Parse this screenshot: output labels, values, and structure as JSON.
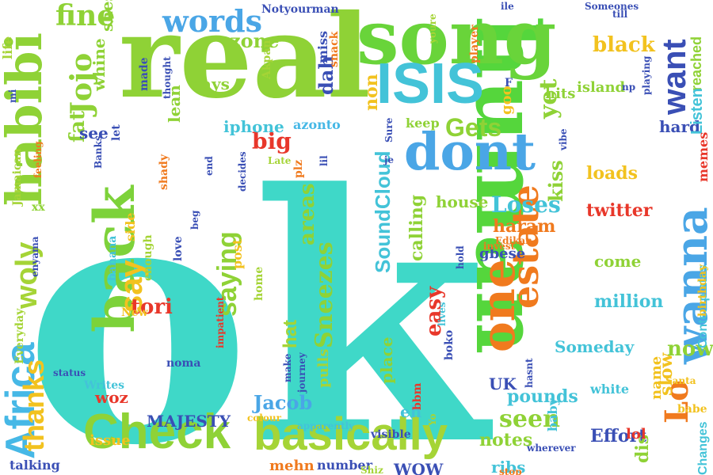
{
  "words": [
    {
      "text": "ok",
      "color": "#3fd8c8"
    },
    {
      "text": "real",
      "color": "#8fd236"
    },
    {
      "text": "human",
      "color": "#55d63c"
    },
    {
      "text": "song",
      "color": "#69d43a"
    },
    {
      "text": "habibi",
      "color": "#8fd236"
    },
    {
      "text": "back",
      "color": "#7dd23a"
    },
    {
      "text": "Check",
      "color": "#8fd236"
    },
    {
      "text": "basically",
      "color": "#a5d436"
    },
    {
      "text": "Africa",
      "color": "#46b8e6"
    },
    {
      "text": "ISIS",
      "color": "#43c3d8"
    },
    {
      "text": "dont",
      "color": "#4aa6e6"
    },
    {
      "text": "one",
      "color": "#f07a1e"
    },
    {
      "text": "estate",
      "color": "#f07a1e"
    },
    {
      "text": "Lo",
      "color": "#f07a1e"
    },
    {
      "text": "wanna",
      "color": "#4aa6e6"
    },
    {
      "text": "want",
      "color": "#3a4fb5"
    },
    {
      "text": "words",
      "color": "#4aa6e6"
    },
    {
      "text": "fine",
      "color": "#8fd236"
    },
    {
      "text": "Jojo",
      "color": "#8fd236"
    },
    {
      "text": "zone",
      "color": "#8fd236"
    },
    {
      "text": "black",
      "color": "#f2c21f"
    },
    {
      "text": "reached",
      "color": "#8fd236"
    },
    {
      "text": "Gets",
      "color": "#8fd236"
    },
    {
      "text": "yet",
      "color": "#8fd236"
    },
    {
      "text": "non",
      "color": "#f2c21f"
    },
    {
      "text": "dah",
      "color": "#3a4fb5"
    },
    {
      "text": "lean",
      "color": "#8fd236"
    },
    {
      "text": "days",
      "color": "#8fd236"
    },
    {
      "text": "big",
      "color": "#e8372a"
    },
    {
      "text": "iphone",
      "color": "#43c3d8"
    },
    {
      "text": "azonto",
      "color": "#46b8e6"
    },
    {
      "text": "say",
      "color": "#f2c21f"
    },
    {
      "text": "saying",
      "color": "#8fd236"
    },
    {
      "text": "tori",
      "color": "#e8372a"
    },
    {
      "text": "woly",
      "color": "#a5d436"
    },
    {
      "text": "thanks",
      "color": "#f2c21f"
    },
    {
      "text": "fat",
      "color": "#8fd236"
    },
    {
      "text": "see",
      "color": "#3a4fb5"
    },
    {
      "text": "whine",
      "color": "#8fd236"
    },
    {
      "text": "Sneezes",
      "color": "#8fd236"
    },
    {
      "text": "areas",
      "color": "#8fd236"
    },
    {
      "text": "SoundCloud",
      "color": "#43c3d8"
    },
    {
      "text": "house",
      "color": "#8fd236"
    },
    {
      "text": "Loses",
      "color": "#43c3d8"
    },
    {
      "text": "haram",
      "color": "#f07a1e"
    },
    {
      "text": "twitter",
      "color": "#e8372a"
    },
    {
      "text": "come",
      "color": "#8fd236"
    },
    {
      "text": "million",
      "color": "#43c3d8"
    },
    {
      "text": "Someday",
      "color": "#43c3d8"
    },
    {
      "text": "easy",
      "color": "#e8372a"
    },
    {
      "text": "Jacob",
      "color": "#4aa6e6"
    },
    {
      "text": "seen",
      "color": "#8fd236"
    },
    {
      "text": "notes",
      "color": "#8fd236"
    },
    {
      "text": "pounds",
      "color": "#43c3d8"
    },
    {
      "text": "MAJESTY",
      "color": "#3a4fb5"
    },
    {
      "text": "WOW",
      "color": "#3a4fb5"
    },
    {
      "text": "Effort",
      "color": "#3a4fb5"
    },
    {
      "text": "slow",
      "color": "#f2c21f"
    },
    {
      "text": "now",
      "color": "#8fd236"
    },
    {
      "text": "hard",
      "color": "#3a4fb5"
    },
    {
      "text": "Listen",
      "color": "#43c3d8"
    },
    {
      "text": "loads",
      "color": "#f2c21f"
    },
    {
      "text": "kiss",
      "color": "#8fd236"
    },
    {
      "text": "island",
      "color": "#8fd236"
    },
    {
      "text": "hits",
      "color": "#8fd236"
    },
    {
      "text": "keep",
      "color": "#8fd236"
    },
    {
      "text": "gbese",
      "color": "#3a4fb5"
    },
    {
      "text": "UK",
      "color": "#3a4fb5"
    },
    {
      "text": "place",
      "color": "#8fd236"
    },
    {
      "text": "eh",
      "color": "#43c3d8"
    },
    {
      "text": "hat",
      "color": "#a5d436"
    },
    {
      "text": "woz",
      "color": "#e8372a"
    },
    {
      "text": "issue",
      "color": "#f2c21f"
    },
    {
      "text": "mehn",
      "color": "#f07a1e"
    },
    {
      "text": "number",
      "color": "#3a4fb5"
    },
    {
      "text": "ribs",
      "color": "#43c3d8"
    },
    {
      "text": "talking",
      "color": "#3a4fb5"
    },
    {
      "text": "Changes",
      "color": "#43c3d8"
    },
    {
      "text": "dis",
      "color": "#8fd236"
    },
    {
      "text": "name",
      "color": "#f2c21f"
    },
    {
      "text": "white",
      "color": "#43c3d8"
    },
    {
      "text": "babe",
      "color": "#f2c21f"
    },
    {
      "text": "lol",
      "color": "#e8372a"
    },
    {
      "text": "baby",
      "color": "#43c3d8"
    },
    {
      "text": "Contemplates",
      "color": "#43c3d8"
    },
    {
      "text": "birthday",
      "color": "#f2c21f"
    },
    {
      "text": "memes",
      "color": "#e8372a"
    },
    {
      "text": "miss",
      "color": "#3a4fb5"
    },
    {
      "text": "snack",
      "color": "#f07a1e"
    },
    {
      "text": "shes",
      "color": "#8fd236"
    },
    {
      "text": "Notyourman",
      "color": "#3a4fb5"
    },
    {
      "text": "Akpan",
      "color": "#a5d436"
    },
    {
      "text": "made",
      "color": "#3a4fb5"
    },
    {
      "text": "thought",
      "color": "#3a4fb5"
    },
    {
      "text": "Someones",
      "color": "#3a4fb5"
    },
    {
      "text": "player",
      "color": "#f07a1e"
    },
    {
      "text": "youre",
      "color": "#a5d436"
    },
    {
      "text": "ile",
      "color": "#3a4fb5"
    },
    {
      "text": "till",
      "color": "#3a4fb5"
    },
    {
      "text": "playing",
      "color": "#3a4fb5"
    },
    {
      "text": "np",
      "color": "#3a4fb5"
    },
    {
      "text": "F",
      "color": "#3a4fb5"
    },
    {
      "text": "goo",
      "color": "#f2c21f"
    },
    {
      "text": "let",
      "color": "#3a4fb5"
    },
    {
      "text": "Banks",
      "color": "#3a4fb5"
    },
    {
      "text": "feeling",
      "color": "#f07a1e"
    },
    {
      "text": "Late",
      "color": "#a5d436"
    },
    {
      "text": "end",
      "color": "#3a4fb5"
    },
    {
      "text": "shady",
      "color": "#f07a1e"
    },
    {
      "text": "plz",
      "color": "#f07a1e"
    },
    {
      "text": "lil",
      "color": "#3a4fb5"
    },
    {
      "text": "Sure",
      "color": "#3a4fb5"
    },
    {
      "text": "je",
      "color": "#3a4fb5"
    },
    {
      "text": "vibe",
      "color": "#3a4fb5"
    },
    {
      "text": "Jamaican",
      "color": "#a5d436"
    },
    {
      "text": "xx",
      "color": "#8fd236"
    },
    {
      "text": "life",
      "color": "#a5d436"
    },
    {
      "text": "mi",
      "color": "#3a4fb5"
    },
    {
      "text": "enyama",
      "color": "#3a4fb5"
    },
    {
      "text": "Everyday",
      "color": "#a5d436"
    },
    {
      "text": "Writes",
      "color": "#43c3d8"
    },
    {
      "text": "status",
      "color": "#3a4fb5"
    },
    {
      "text": "side",
      "color": "#f2c21f"
    },
    {
      "text": "enough",
      "color": "#a5d436"
    },
    {
      "text": "banana",
      "color": "#43c3d8"
    },
    {
      "text": "New",
      "color": "#f2c21f"
    },
    {
      "text": "love",
      "color": "#3a4fb5"
    },
    {
      "text": "beg",
      "color": "#3a4fb5"
    },
    {
      "text": "decides",
      "color": "#3a4fb5"
    },
    {
      "text": "home",
      "color": "#a5d436"
    },
    {
      "text": "post",
      "color": "#f2c21f"
    },
    {
      "text": "impatient",
      "color": "#e8372a"
    },
    {
      "text": "noma",
      "color": "#3a4fb5"
    },
    {
      "text": "make",
      "color": "#3a4fb5"
    },
    {
      "text": "journey",
      "color": "#3a4fb5"
    },
    {
      "text": "pulls",
      "color": "#a5d436"
    },
    {
      "text": "colour",
      "color": "#f2c21f"
    },
    {
      "text": "apparently",
      "color": "#43c3d8"
    },
    {
      "text": "visible",
      "color": "#3a4fb5"
    },
    {
      "text": "bbm",
      "color": "#e8372a"
    },
    {
      "text": "Yo",
      "color": "#a5d436"
    },
    {
      "text": "Shiz",
      "color": "#a5d436"
    },
    {
      "text": "boko",
      "color": "#3a4fb5"
    },
    {
      "text": "lives",
      "color": "#43c3d8"
    },
    {
      "text": "hold",
      "color": "#3a4fb5"
    },
    {
      "text": "invest",
      "color": "#f07a1e"
    },
    {
      "text": "Edikan",
      "color": "#f07a1e"
    },
    {
      "text": "calling",
      "color": "#8fd236"
    },
    {
      "text": "hasnt",
      "color": "#3a4fb5"
    },
    {
      "text": "wherever",
      "color": "#3a4fb5"
    },
    {
      "text": "stop",
      "color": "#f07a1e"
    },
    {
      "text": "Santa",
      "color": "#f2c21f"
    }
  ]
}
